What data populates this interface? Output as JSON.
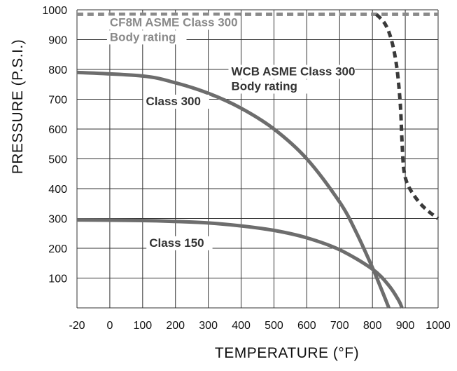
{
  "chart_data": {
    "type": "line",
    "xlabel": "TEMPERATURE (°F)",
    "ylabel": "PRESSURE (P.S.I.)",
    "xlim": [
      -20,
      1000
    ],
    "ylim": [
      0,
      1000
    ],
    "x_ticks": [
      "-20",
      "0",
      "100",
      "200",
      "300",
      "400",
      "500",
      "600",
      "700",
      "800",
      "900",
      "1000"
    ],
    "y_ticks": [
      "100",
      "200",
      "300",
      "400",
      "500",
      "600",
      "700",
      "800",
      "900",
      "1000"
    ],
    "grid": true,
    "series": [
      {
        "name": "Class 300",
        "style": "solid",
        "color": "#6d6d6d",
        "x": [
          -20,
          100,
          200,
          300,
          400,
          500,
          600,
          700,
          750,
          800,
          830,
          850
        ],
        "y": [
          790,
          778,
          755,
          720,
          670,
          600,
          500,
          355,
          255,
          135,
          55,
          0
        ]
      },
      {
        "name": "Class 150",
        "style": "solid",
        "color": "#6d6d6d",
        "x": [
          -20,
          100,
          200,
          300,
          400,
          500,
          600,
          700,
          800,
          850,
          880,
          890
        ],
        "y": [
          295,
          293,
          290,
          285,
          275,
          260,
          235,
          195,
          130,
          75,
          25,
          0
        ]
      },
      {
        "name": "CF8M ASME Class 300 Body rating",
        "style": "dashed",
        "color": "#8a8a8a",
        "x": [
          -20,
          1000
        ],
        "y": [
          985,
          985
        ]
      },
      {
        "name": "WCB ASME Class 300 Body rating",
        "style": "dashed",
        "color": "#3a3a3a",
        "x": [
          812,
          840,
          860,
          875,
          885,
          890,
          895,
          905,
          925,
          950,
          975,
          1000
        ],
        "y": [
          985,
          950,
          890,
          800,
          680,
          560,
          470,
          420,
          380,
          345,
          320,
          300
        ]
      }
    ],
    "annotations": [
      {
        "lines": [
          "CF8M ASME Class 300",
          "Body rating"
        ],
        "x": 0,
        "y": 945,
        "color": "#8a8a8a"
      },
      {
        "lines": [
          "WCB ASME Class 300",
          "Body rating"
        ],
        "x": 370,
        "y": 780,
        "color": "#333333"
      },
      {
        "lines": [
          "Class 300"
        ],
        "x": 110,
        "y": 680,
        "color": "#333333"
      },
      {
        "lines": [
          "Class 150"
        ],
        "x": 120,
        "y": 205,
        "color": "#333333"
      }
    ]
  }
}
